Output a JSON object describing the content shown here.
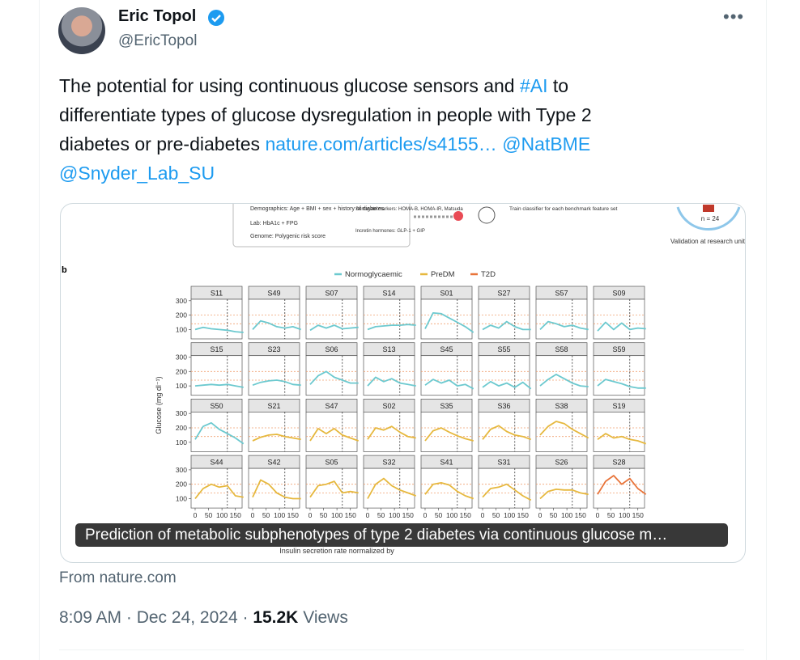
{
  "author": {
    "name": "Eric Topol",
    "handle": "@EricTopol"
  },
  "tweet": {
    "text_1": "The potential for using continuous glucose sensors and",
    "hashtag": "#AI",
    "text_2": "to",
    "text_3": "differentiate types of glucose dysregulation in people with Type 2",
    "text_4": "diabetes or pre-diabetes",
    "link": "nature.com/articles/s4155…",
    "mention_1": "@NatBME",
    "mention_2": "@Snyder_Lab_SU"
  },
  "figure": {
    "demographics": "Demographics: Age + BMI + sex + history of diabetes",
    "lab": "Lab: HbA1c + FPG",
    "genome": "Genome: Polygenic risk score",
    "surrogate": "Surrogate markers: HOMA-B, HOMA-IR, Matsuda",
    "incretin": "Incretin hormones: GLP-1 + GIP",
    "classifier": "Train classifier for each benchmark feature set",
    "n": "n = 24",
    "validation": "Validation at research unit",
    "panel_letter": "b",
    "bottom_note": "Insulin secretion rate normalized by"
  },
  "card": {
    "caption": "Prediction of metabolic subphenotypes of type 2 diabetes via continuous glucose m…",
    "source": "From nature.com"
  },
  "meta": {
    "time": "8:09 AM · Dec 24, 2024 ·",
    "views_count": "15.2K",
    "views_label": "Views"
  },
  "chart_data": {
    "type": "line",
    "ylabel": "Glucose (mg dl⁻¹)",
    "series": [
      {
        "name": "Normoglycaemic",
        "color": "#6cc9cf"
      },
      {
        "name": "PreDM",
        "color": "#e6b83e"
      },
      {
        "name": "T2D",
        "color": "#e8743a"
      }
    ],
    "x": [
      0,
      30,
      60,
      90,
      120,
      150,
      180
    ],
    "xlim": [
      -15,
      175
    ],
    "xticks": [
      0,
      50,
      100,
      150
    ],
    "ylim": [
      35,
      310
    ],
    "yticks": [
      100,
      200,
      300
    ],
    "thresholds": [
      140,
      200
    ],
    "vline": 120,
    "panels": [
      {
        "title": "S11",
        "group": 0,
        "values": [
          100,
          115,
          105,
          100,
          95,
          85,
          80
        ]
      },
      {
        "title": "S49",
        "group": 0,
        "values": [
          100,
          160,
          145,
          120,
          110,
          120,
          100
        ]
      },
      {
        "title": "S07",
        "group": 0,
        "values": [
          95,
          130,
          110,
          130,
          105,
          110,
          115
        ]
      },
      {
        "title": "S14",
        "group": 0,
        "values": [
          100,
          120,
          125,
          130,
          130,
          135,
          130
        ]
      },
      {
        "title": "S01",
        "group": 0,
        "values": [
          105,
          215,
          210,
          180,
          150,
          120,
          80
        ]
      },
      {
        "title": "S27",
        "group": 0,
        "values": [
          100,
          130,
          110,
          155,
          120,
          100,
          100
        ]
      },
      {
        "title": "S57",
        "group": 0,
        "values": [
          100,
          155,
          140,
          120,
          130,
          110,
          100
        ]
      },
      {
        "title": "S09",
        "group": 0,
        "values": [
          90,
          150,
          100,
          145,
          100,
          110,
          105
        ]
      },
      {
        "title": "S15",
        "group": 0,
        "values": [
          100,
          105,
          110,
          105,
          110,
          100,
          90
        ]
      },
      {
        "title": "S23",
        "group": 0,
        "values": [
          105,
          125,
          135,
          140,
          130,
          110,
          105
        ]
      },
      {
        "title": "S06",
        "group": 0,
        "values": [
          110,
          170,
          200,
          160,
          140,
          120,
          120
        ]
      },
      {
        "title": "S13",
        "group": 0,
        "values": [
          100,
          160,
          130,
          150,
          120,
          110,
          100
        ]
      },
      {
        "title": "S45",
        "group": 0,
        "values": [
          105,
          145,
          120,
          140,
          100,
          110,
          80
        ]
      },
      {
        "title": "S55",
        "group": 0,
        "values": [
          90,
          130,
          100,
          120,
          90,
          125,
          80
        ]
      },
      {
        "title": "S58",
        "group": 0,
        "values": [
          100,
          145,
          180,
          150,
          120,
          100,
          95
        ]
      },
      {
        "title": "S59",
        "group": 0,
        "values": [
          100,
          145,
          130,
          115,
          95,
          85,
          85
        ]
      },
      {
        "title": "S50",
        "group": 0,
        "values": [
          120,
          210,
          235,
          190,
          160,
          130,
          90
        ]
      },
      {
        "title": "S21",
        "group": 1,
        "values": [
          110,
          135,
          150,
          155,
          140,
          130,
          120
        ]
      },
      {
        "title": "S47",
        "group": 1,
        "values": [
          110,
          195,
          160,
          195,
          150,
          130,
          110
        ]
      },
      {
        "title": "S02",
        "group": 1,
        "values": [
          120,
          200,
          185,
          210,
          170,
          140,
          130
        ]
      },
      {
        "title": "S35",
        "group": 1,
        "values": [
          110,
          180,
          200,
          170,
          145,
          125,
          110
        ]
      },
      {
        "title": "S36",
        "group": 1,
        "values": [
          120,
          190,
          215,
          175,
          150,
          140,
          120
        ]
      },
      {
        "title": "S38",
        "group": 1,
        "values": [
          150,
          210,
          245,
          230,
          190,
          160,
          130
        ]
      },
      {
        "title": "S19",
        "group": 1,
        "values": [
          120,
          160,
          130,
          140,
          120,
          110,
          90
        ]
      },
      {
        "title": "S44",
        "group": 1,
        "values": [
          100,
          170,
          200,
          180,
          190,
          120,
          110
        ]
      },
      {
        "title": "S42",
        "group": 1,
        "values": [
          110,
          230,
          200,
          140,
          110,
          100,
          100
        ]
      },
      {
        "title": "S05",
        "group": 1,
        "values": [
          110,
          190,
          200,
          220,
          140,
          150,
          140
        ]
      },
      {
        "title": "S32",
        "group": 1,
        "values": [
          100,
          200,
          240,
          190,
          160,
          140,
          120
        ]
      },
      {
        "title": "S41",
        "group": 1,
        "values": [
          130,
          200,
          210,
          195,
          150,
          120,
          100
        ]
      },
      {
        "title": "S31",
        "group": 1,
        "values": [
          110,
          170,
          180,
          200,
          160,
          120,
          90
        ]
      },
      {
        "title": "S26",
        "group": 1,
        "values": [
          100,
          150,
          165,
          160,
          160,
          140,
          130
        ]
      },
      {
        "title": "S28",
        "group": 2,
        "values": [
          130,
          220,
          260,
          200,
          240,
          170,
          130
        ]
      }
    ]
  }
}
